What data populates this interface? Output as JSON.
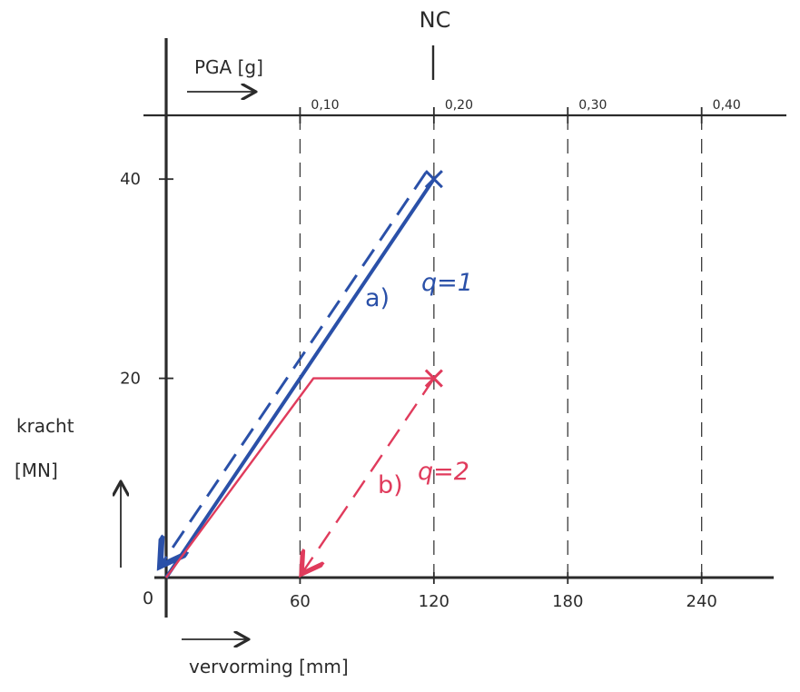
{
  "colors": {
    "axis": "#2b2b2b",
    "grid": "#3a3a3a",
    "series_a": "#2a50a8",
    "series_b": "#e03b5c"
  },
  "chart_data": {
    "type": "line",
    "xlabel": "vervorming [mm]",
    "ylabel_line1": "kracht",
    "ylabel_line2": "[MN]",
    "origin_label": "0",
    "xlim": [
      0,
      280
    ],
    "ylim": [
      0,
      50
    ],
    "x_ticks": [
      {
        "value": 60,
        "label": "60"
      },
      {
        "value": 120,
        "label": "120"
      },
      {
        "value": 180,
        "label": "180"
      },
      {
        "value": 240,
        "label": "240"
      }
    ],
    "y_ticks": [
      {
        "value": 20,
        "label": "20"
      },
      {
        "value": 40,
        "label": "40"
      }
    ],
    "top_axis": {
      "label": "PGA [g]",
      "ticks": [
        {
          "pga": "0,10",
          "x": 60
        },
        {
          "pga": "0,20",
          "x": 120
        },
        {
          "pga": "0,30",
          "x": 180
        },
        {
          "pga": "0,40",
          "x": 240
        }
      ]
    },
    "nc_marker": {
      "label": "NC",
      "x": 120
    },
    "series": [
      {
        "key": "a",
        "label_letter": "a)",
        "label_q": "q=1",
        "solid": [
          [
            0,
            0
          ],
          [
            120,
            40
          ]
        ],
        "dashed": [
          [
            120,
            40
          ],
          [
            0,
            0
          ]
        ],
        "end_marker": [
          120,
          40
        ]
      },
      {
        "key": "b",
        "label_letter": "b)",
        "label_q": "q=2",
        "solid": [
          [
            0,
            0
          ],
          [
            66,
            20
          ],
          [
            120,
            20
          ]
        ],
        "dashed": [
          [
            120,
            20
          ],
          [
            60,
            0
          ]
        ],
        "end_marker": [
          120,
          20
        ]
      }
    ]
  }
}
